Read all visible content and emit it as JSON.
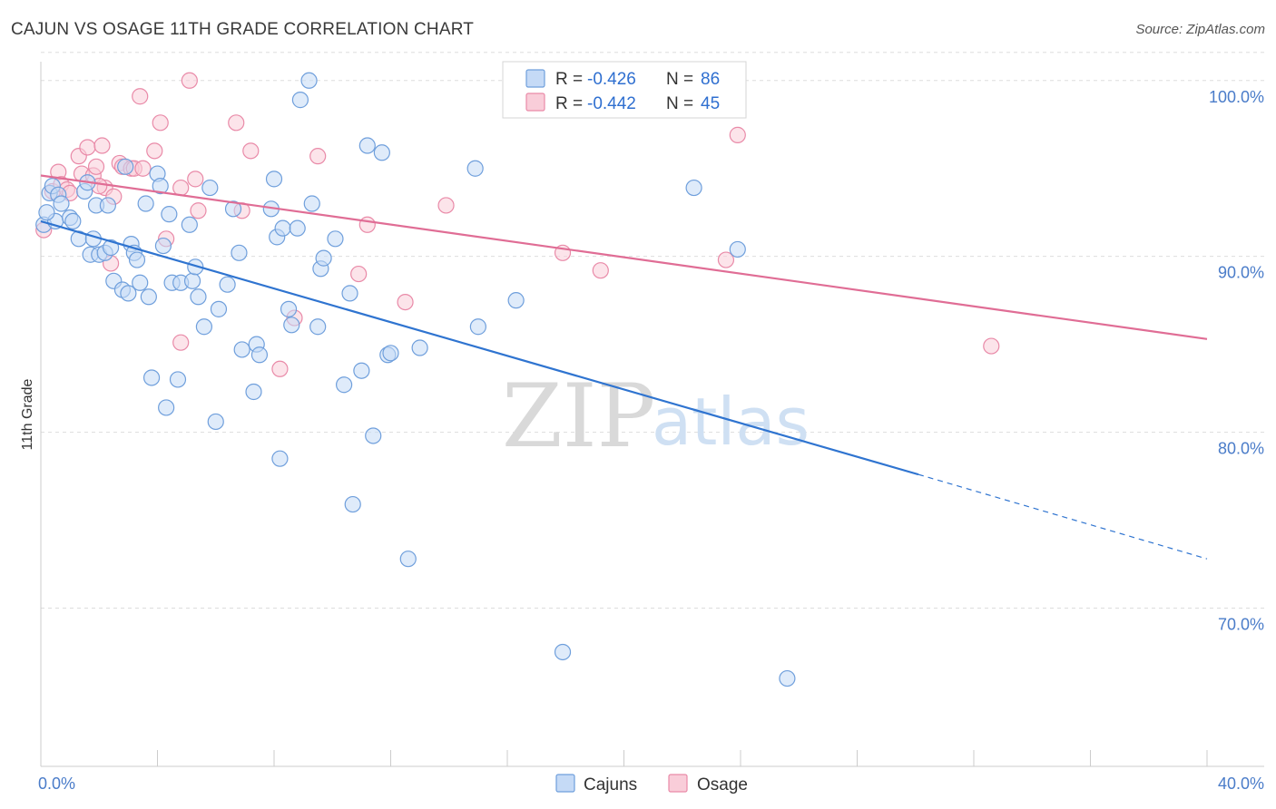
{
  "title": "CAJUN VS OSAGE 11TH GRADE CORRELATION CHART",
  "source": "Source: ZipAtlas.com",
  "watermark": {
    "zip": "ZIP",
    "atlas": "atlas"
  },
  "colors": {
    "cajun_fill": "#c5daf6",
    "cajun_stroke": "#6f9fdc",
    "cajun_line": "#2f74d0",
    "osage_fill": "#f9cdd9",
    "osage_stroke": "#e98aa8",
    "osage_line": "#e06d95",
    "tick_text": "#4a7cc9",
    "grid": "#dddddd"
  },
  "legend": {
    "rows": [
      {
        "r_label": "R = ",
        "r_value": "-0.426",
        "n_label": "N = ",
        "n_value": "86"
      },
      {
        "r_label": "R = ",
        "r_value": "-0.442",
        "n_label": "N = ",
        "n_value": "45"
      }
    ]
  },
  "bottom_legend": [
    "Cajuns",
    "Osage"
  ],
  "chart_data": {
    "type": "scatter",
    "title": "CAJUN VS OSAGE 11TH GRADE CORRELATION CHART",
    "xlabel": "",
    "ylabel": "11th Grade",
    "xlim": [
      0,
      40
    ],
    "ylim": [
      61,
      102
    ],
    "x_tick_labels": [
      "0.0%",
      "40.0%"
    ],
    "y_ticks": [
      70,
      80,
      90,
      100
    ],
    "y_tick_labels": [
      "70.0%",
      "80.0%",
      "90.0%",
      "100.0%"
    ],
    "grid": true,
    "legend_position": "top-center",
    "series": [
      {
        "name": "Cajuns",
        "r": -0.426,
        "n": 86,
        "trend": {
          "x0": 0,
          "y0": 92.0,
          "x1": 30.1,
          "y1": 77.6,
          "dashed_to_x": 40,
          "dashed_to_y": 72.8
        },
        "points": [
          [
            0.1,
            91.8
          ],
          [
            0.3,
            93.6
          ],
          [
            0.4,
            94.0
          ],
          [
            0.5,
            92.0
          ],
          [
            0.6,
            93.5
          ],
          [
            0.7,
            93.0
          ],
          [
            1.0,
            92.2
          ],
          [
            1.1,
            92.0
          ],
          [
            1.3,
            91.0
          ],
          [
            1.5,
            93.7
          ],
          [
            1.6,
            94.2
          ],
          [
            1.7,
            90.1
          ],
          [
            1.8,
            91.0
          ],
          [
            1.9,
            92.9
          ],
          [
            2.0,
            90.1
          ],
          [
            2.2,
            90.2
          ],
          [
            2.3,
            92.9
          ],
          [
            2.4,
            90.5
          ],
          [
            2.5,
            88.6
          ],
          [
            2.8,
            88.1
          ],
          [
            2.9,
            95.1
          ],
          [
            3.0,
            87.9
          ],
          [
            3.1,
            90.7
          ],
          [
            3.2,
            90.2
          ],
          [
            3.3,
            89.8
          ],
          [
            3.4,
            88.5
          ],
          [
            3.6,
            93.0
          ],
          [
            3.7,
            87.7
          ],
          [
            3.8,
            83.1
          ],
          [
            4.0,
            94.7
          ],
          [
            4.1,
            94.0
          ],
          [
            4.2,
            90.6
          ],
          [
            4.3,
            81.4
          ],
          [
            4.4,
            92.4
          ],
          [
            4.5,
            88.5
          ],
          [
            4.7,
            83.0
          ],
          [
            4.8,
            88.5
          ],
          [
            5.1,
            91.8
          ],
          [
            5.2,
            88.6
          ],
          [
            5.3,
            89.4
          ],
          [
            5.4,
            87.7
          ],
          [
            5.6,
            86.0
          ],
          [
            5.8,
            93.9
          ],
          [
            6.0,
            80.6
          ],
          [
            6.1,
            87.0
          ],
          [
            6.4,
            88.4
          ],
          [
            6.6,
            92.7
          ],
          [
            6.8,
            90.2
          ],
          [
            6.9,
            84.7
          ],
          [
            7.3,
            82.3
          ],
          [
            7.4,
            85.0
          ],
          [
            7.5,
            84.4
          ],
          [
            7.9,
            92.7
          ],
          [
            8.0,
            94.4
          ],
          [
            8.1,
            91.1
          ],
          [
            8.2,
            78.5
          ],
          [
            8.3,
            91.6
          ],
          [
            8.5,
            87.0
          ],
          [
            8.6,
            86.1
          ],
          [
            8.8,
            91.6
          ],
          [
            8.9,
            98.9
          ],
          [
            9.2,
            100.0
          ],
          [
            9.3,
            93.0
          ],
          [
            9.5,
            86.0
          ],
          [
            9.6,
            89.3
          ],
          [
            9.7,
            89.9
          ],
          [
            10.1,
            91.0
          ],
          [
            10.4,
            82.7
          ],
          [
            10.6,
            87.9
          ],
          [
            10.7,
            75.9
          ],
          [
            11.0,
            83.5
          ],
          [
            11.2,
            96.3
          ],
          [
            11.4,
            79.8
          ],
          [
            11.7,
            95.9
          ],
          [
            11.9,
            84.4
          ],
          [
            12.0,
            84.5
          ],
          [
            12.6,
            72.8
          ],
          [
            13.0,
            84.8
          ],
          [
            14.9,
            95.0
          ],
          [
            15.0,
            86.0
          ],
          [
            16.3,
            87.5
          ],
          [
            17.9,
            67.5
          ],
          [
            22.4,
            93.9
          ],
          [
            23.9,
            90.4
          ],
          [
            25.6,
            66.0
          ],
          [
            0.2,
            92.5
          ]
        ]
      },
      {
        "name": "Osage",
        "r": -0.442,
        "n": 45,
        "trend": {
          "x0": 0,
          "y0": 94.6,
          "x1": 40,
          "y1": 85.3
        },
        "points": [
          [
            0.1,
            91.5
          ],
          [
            0.4,
            93.7
          ],
          [
            0.6,
            94.8
          ],
          [
            0.7,
            94.1
          ],
          [
            0.9,
            93.8
          ],
          [
            1.0,
            93.6
          ],
          [
            1.3,
            95.7
          ],
          [
            1.4,
            94.7
          ],
          [
            1.6,
            96.2
          ],
          [
            1.8,
            94.6
          ],
          [
            1.9,
            95.1
          ],
          [
            2.1,
            96.3
          ],
          [
            2.2,
            93.9
          ],
          [
            2.4,
            89.6
          ],
          [
            2.5,
            93.4
          ],
          [
            2.7,
            95.3
          ],
          [
            2.8,
            95.1
          ],
          [
            3.1,
            95.0
          ],
          [
            3.2,
            95.0
          ],
          [
            3.4,
            99.1
          ],
          [
            3.5,
            95.0
          ],
          [
            3.9,
            96.0
          ],
          [
            4.1,
            97.6
          ],
          [
            4.3,
            91.0
          ],
          [
            4.8,
            93.9
          ],
          [
            4.8,
            85.1
          ],
          [
            5.1,
            100.0
          ],
          [
            5.3,
            94.4
          ],
          [
            5.4,
            92.6
          ],
          [
            6.7,
            97.6
          ],
          [
            6.9,
            92.6
          ],
          [
            7.2,
            96.0
          ],
          [
            8.2,
            83.6
          ],
          [
            8.7,
            86.5
          ],
          [
            9.5,
            95.7
          ],
          [
            10.9,
            89.0
          ],
          [
            11.2,
            91.8
          ],
          [
            12.5,
            87.4
          ],
          [
            13.9,
            92.9
          ],
          [
            17.9,
            90.2
          ],
          [
            19.2,
            89.2
          ],
          [
            23.5,
            89.8
          ],
          [
            23.9,
            96.9
          ],
          [
            32.6,
            84.9
          ],
          [
            2.0,
            94.0
          ]
        ]
      }
    ]
  }
}
